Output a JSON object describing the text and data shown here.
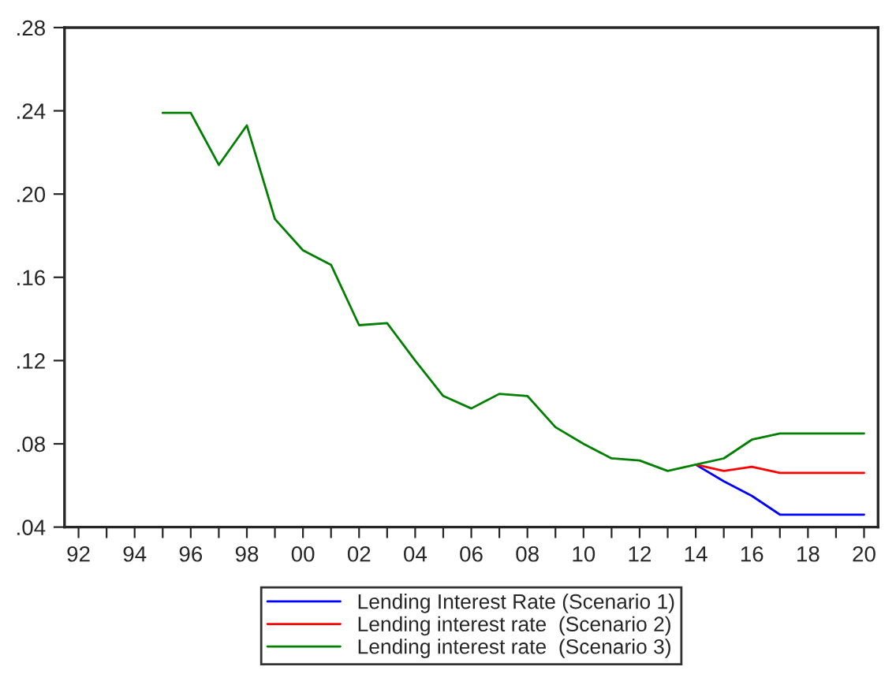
{
  "chart_data": {
    "type": "line",
    "x": [
      1995,
      1996,
      1997,
      1998,
      1999,
      2000,
      2001,
      2002,
      2003,
      2004,
      2005,
      2006,
      2007,
      2008,
      2009,
      2010,
      2011,
      2012,
      2013,
      2014,
      2015,
      2016,
      2017,
      2018,
      2019,
      2020
    ],
    "series": [
      {
        "name": "Lending Interest Rate (Scenario 1)",
        "color": "#0000ff",
        "values": [
          null,
          null,
          null,
          null,
          null,
          null,
          null,
          null,
          null,
          null,
          null,
          null,
          null,
          null,
          null,
          null,
          null,
          null,
          null,
          0.07,
          0.062,
          0.055,
          0.046,
          0.046,
          0.046,
          0.046
        ]
      },
      {
        "name": "Lending interest rate  (Scenario 2)",
        "color": "#ff0000",
        "values": [
          null,
          null,
          null,
          null,
          null,
          null,
          null,
          null,
          null,
          null,
          null,
          null,
          null,
          null,
          null,
          null,
          null,
          null,
          null,
          0.07,
          0.067,
          0.069,
          0.066,
          0.066,
          0.066,
          0.066
        ]
      },
      {
        "name": "Lending interest rate  (Scenario 3)",
        "color": "#008000",
        "values": [
          0.239,
          0.239,
          0.214,
          0.233,
          0.188,
          0.173,
          0.166,
          0.137,
          0.138,
          0.12,
          0.103,
          0.097,
          0.104,
          0.103,
          0.088,
          0.08,
          0.073,
          0.072,
          0.067,
          0.07,
          0.073,
          0.082,
          0.085,
          0.085,
          0.085,
          0.085
        ]
      }
    ],
    "xlim": [
      1991.5,
      2020.5
    ],
    "xticks": [
      {
        "value": 1992,
        "label": "92"
      },
      {
        "value": 1993,
        "label": null
      },
      {
        "value": 1994,
        "label": "94"
      },
      {
        "value": 1995,
        "label": null
      },
      {
        "value": 1996,
        "label": "96"
      },
      {
        "value": 1997,
        "label": null
      },
      {
        "value": 1998,
        "label": "98"
      },
      {
        "value": 1999,
        "label": null
      },
      {
        "value": 2000,
        "label": "00"
      },
      {
        "value": 2001,
        "label": null
      },
      {
        "value": 2002,
        "label": "02"
      },
      {
        "value": 2003,
        "label": null
      },
      {
        "value": 2004,
        "label": "04"
      },
      {
        "value": 2005,
        "label": null
      },
      {
        "value": 2006,
        "label": "06"
      },
      {
        "value": 2007,
        "label": null
      },
      {
        "value": 2008,
        "label": "08"
      },
      {
        "value": 2009,
        "label": null
      },
      {
        "value": 2010,
        "label": "10"
      },
      {
        "value": 2011,
        "label": null
      },
      {
        "value": 2012,
        "label": "12"
      },
      {
        "value": 2013,
        "label": null
      },
      {
        "value": 2014,
        "label": "14"
      },
      {
        "value": 2015,
        "label": null
      },
      {
        "value": 2016,
        "label": "16"
      },
      {
        "value": 2017,
        "label": null
      },
      {
        "value": 2018,
        "label": "18"
      },
      {
        "value": 2019,
        "label": null
      },
      {
        "value": 2020,
        "label": "20"
      }
    ],
    "ylim": [
      0.04,
      0.28
    ],
    "yticks": [
      {
        "value": 0.04,
        "label": ".04"
      },
      {
        "value": 0.08,
        "label": ".08"
      },
      {
        "value": 0.12,
        "label": ".12"
      },
      {
        "value": 0.16,
        "label": ".16"
      },
      {
        "value": 0.2,
        "label": ".20"
      },
      {
        "value": 0.24,
        "label": ".24"
      },
      {
        "value": 0.28,
        "label": ".28"
      }
    ],
    "grid": false,
    "legend": "bottom",
    "line_style": "solid",
    "marker": "none"
  }
}
